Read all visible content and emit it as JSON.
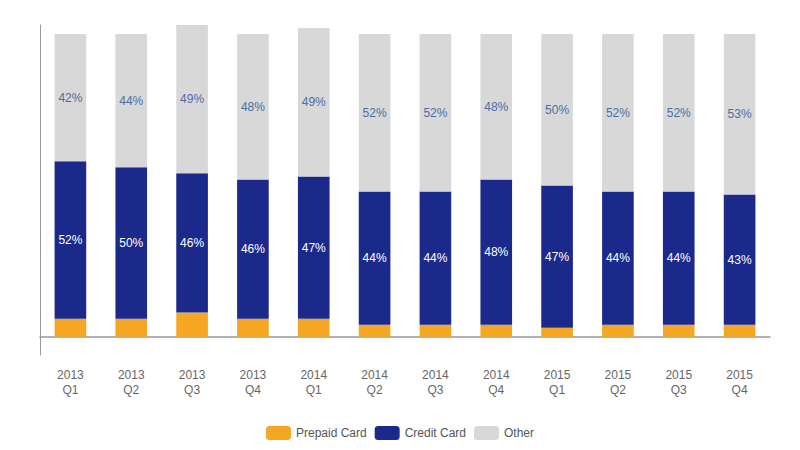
{
  "chart_data": {
    "type": "bar",
    "stacked": true,
    "categories": [
      "2013\nQ1",
      "2013\nQ2",
      "2013\nQ3",
      "2013\nQ4",
      "2014\nQ1",
      "2014\nQ2",
      "2014\nQ3",
      "2014\nQ4",
      "2015\nQ1",
      "2015\nQ2",
      "2015\nQ3",
      "2015\nQ4"
    ],
    "series": [
      {
        "name": "Prepaid Card",
        "color": "#F5A623",
        "values": [
          6,
          6,
          8,
          6,
          6,
          4,
          4,
          4,
          3,
          4,
          4,
          4
        ]
      },
      {
        "name": "Credit Card",
        "color": "#1B2A8A",
        "values": [
          52,
          50,
          46,
          46,
          47,
          44,
          44,
          48,
          47,
          44,
          44,
          43
        ],
        "data_labels": true,
        "value_labels": [
          "52%",
          "50%",
          "46%",
          "46%",
          "47%",
          "44%",
          "44%",
          "48%",
          "47%",
          "44%",
          "44%",
          "43%"
        ]
      },
      {
        "name": "Other",
        "color": "#D8D8D8",
        "values": [
          42,
          44,
          49,
          48,
          49,
          52,
          52,
          48,
          50,
          52,
          52,
          53
        ],
        "data_labels": true,
        "value_labels": [
          "42%",
          "44%",
          "49%",
          "48%",
          "49%",
          "52%",
          "52%",
          "48%",
          "50%",
          "52%",
          "52%",
          "53%"
        ]
      }
    ],
    "ylim": [
      -6,
      103
    ],
    "yticks": [],
    "tick_labels": "x",
    "grid": false,
    "legend": "bottom"
  }
}
